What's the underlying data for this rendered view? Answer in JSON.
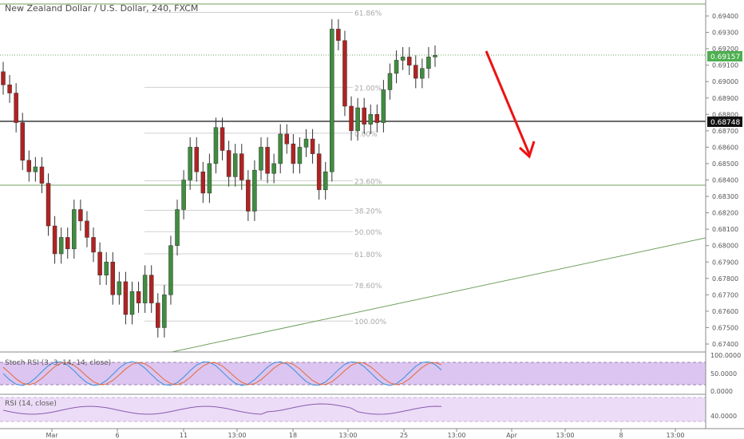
{
  "title": "New Zealand Dollar / U.S. Dollar, 240, FXCM",
  "colors": {
    "up": "#3f8d3f",
    "down": "#b22222",
    "fib_line": "#d0d0d0",
    "fib_text": "#a8a8a8",
    "trend_line": "#6fa05f",
    "arrow": "#ee1111",
    "stoch_fill": "#dcc5f0",
    "rsi_fill": "#ecdcf7",
    "price_badge": "#4caf50",
    "level_badge": "#111111"
  },
  "price_scale": {
    "min": 0.674,
    "max": 0.6955,
    "ticks": [
      "0.69400",
      "0.69300",
      "0.69200",
      "0.69100",
      "0.69000",
      "0.68900",
      "0.68800",
      "0.68700",
      "0.68600",
      "0.68500",
      "0.68400",
      "0.68300",
      "0.68200",
      "0.68100",
      "0.68000",
      "0.67900",
      "0.67800",
      "0.67700",
      "0.67600",
      "0.67500",
      "0.67400"
    ],
    "current_price": "0.69157",
    "level_price": "0.68748"
  },
  "fib_levels": [
    {
      "label": "61.86%",
      "price": 0.69422
    },
    {
      "label": "21.00%",
      "price": 0.68965
    },
    {
      "label": "0.00%",
      "price": 0.68685
    },
    {
      "label": "23.60%",
      "price": 0.68395
    },
    {
      "label": "38.20%",
      "price": 0.68215
    },
    {
      "label": "50.00%",
      "price": 0.68085
    },
    {
      "label": "61.80%",
      "price": 0.6795
    },
    {
      "label": "78.60%",
      "price": 0.6776
    },
    {
      "label": "100.00%",
      "price": 0.6754
    }
  ],
  "horizontal_levels": [
    {
      "name": "upper-green-line",
      "price": 0.6952
    },
    {
      "name": "lower-green-line",
      "price": 0.68352
    }
  ],
  "stoch_panel": {
    "label": "Stoch RSI (3, 3, 14, 14, close)",
    "ticks": [
      "100.0000",
      "50.0000",
      "0.0000"
    ]
  },
  "rsi_panel": {
    "label": "RSI (14, close)",
    "ticks": [
      "40.0000"
    ]
  },
  "time_axis": [
    "Mar",
    "6",
    "11",
    "13:00",
    "18",
    "13:00",
    "25",
    "13:00",
    "Apr",
    "13:00",
    "8",
    "13:00"
  ],
  "chart_data": {
    "type": "candlestick",
    "series_count": 68,
    "start_close": 0.6898,
    "closes": [
      0.6898,
      0.6893,
      0.6875,
      0.6852,
      0.6845,
      0.6848,
      0.6838,
      0.6812,
      0.6795,
      0.6805,
      0.6798,
      0.6822,
      0.6815,
      0.6805,
      0.6796,
      0.6782,
      0.679,
      0.677,
      0.6778,
      0.6758,
      0.6772,
      0.6765,
      0.6782,
      0.6765,
      0.675,
      0.677,
      0.68,
      0.6822,
      0.684,
      0.686,
      0.6845,
      0.6832,
      0.685,
      0.6872,
      0.6858,
      0.6842,
      0.6856,
      0.684,
      0.6821,
      0.6846,
      0.686,
      0.6844,
      0.685,
      0.6868,
      0.6862,
      0.685,
      0.686,
      0.6865,
      0.6856,
      0.6834,
      0.6845,
      0.6932,
      0.6925,
      0.6885,
      0.687,
      0.6884,
      0.6874,
      0.688,
      0.6875,
      0.6895,
      0.6905,
      0.6913,
      0.6915,
      0.691,
      0.6902,
      0.6908,
      0.6915,
      0.6916
    ]
  }
}
